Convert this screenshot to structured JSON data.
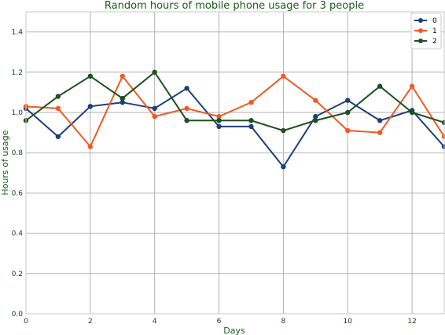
{
  "chart_data": {
    "type": "line",
    "title": "Random hours of mobile phone usage for 3 people",
    "xlabel": "Days",
    "ylabel": "Hours of usage",
    "xlim": [
      0,
      13
    ],
    "ylim": [
      0,
      1.5
    ],
    "xticks": [
      0,
      2,
      4,
      6,
      8,
      10,
      12
    ],
    "yticks": [
      0.0,
      0.2,
      0.4,
      0.6,
      0.8,
      1.0,
      1.2,
      1.4
    ],
    "grid": true,
    "legend": "top-right",
    "x": [
      0,
      1,
      2,
      3,
      4,
      5,
      6,
      7,
      8,
      9,
      10,
      11,
      12,
      13
    ],
    "series": [
      {
        "name": "0",
        "color": "#1f3f7a",
        "values": [
          1.02,
          0.88,
          1.03,
          1.05,
          1.02,
          1.12,
          0.93,
          0.93,
          0.73,
          0.98,
          1.06,
          0.96,
          1.01,
          0.83
        ]
      },
      {
        "name": "1",
        "color": "#f15a24",
        "values": [
          1.03,
          1.02,
          0.83,
          1.18,
          0.98,
          1.02,
          0.98,
          1.05,
          1.18,
          1.06,
          0.91,
          0.9,
          1.13,
          0.88
        ]
      },
      {
        "name": "2",
        "color": "#1f4f1f",
        "values": [
          0.96,
          1.08,
          1.18,
          1.07,
          1.2,
          0.96,
          0.96,
          0.96,
          0.91,
          0.96,
          1.0,
          1.13,
          1.0,
          0.95
        ]
      }
    ]
  }
}
